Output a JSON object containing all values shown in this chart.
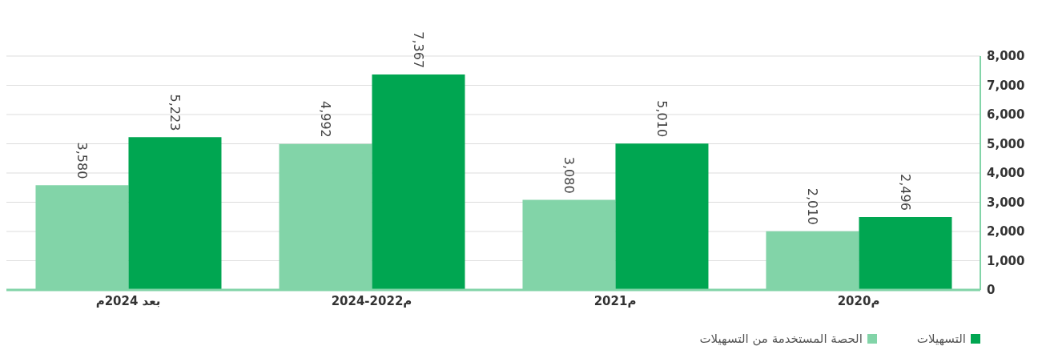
{
  "chart_data": {
    "type": "bar",
    "categories": [
      "بعد 2024م",
      "2024-2022م",
      "2021م",
      "2020م"
    ],
    "series": [
      {
        "name": "الحصة المستخدمة من التسهيلات",
        "color": "#82d4a8",
        "values": [
          3580,
          4992,
          3080,
          2010
        ],
        "value_labels": [
          "3,580",
          "4,992",
          "3,080",
          "2,010"
        ]
      },
      {
        "name": "التسهيلات",
        "color": "#00a651",
        "values": [
          5223,
          7367,
          5010,
          2496
        ],
        "value_labels": [
          "5,223",
          "7,367",
          "5,010",
          "2,496"
        ]
      }
    ],
    "ylim": [
      0,
      8000
    ],
    "yticks": [
      0,
      {
        "value": 1000,
        "label": "1,000"
      },
      {
        "value": 2000,
        "label": "2,000"
      },
      {
        "value": 3000,
        "label": "3,000"
      },
      {
        "value": 4000,
        "label": "4,000"
      },
      {
        "value": 5000,
        "label": "5,000"
      },
      {
        "value": 6000,
        "label": "6,000"
      },
      {
        "value": 7000,
        "label": "7,000"
      },
      {
        "value": 8000,
        "label": "8,000"
      }
    ],
    "grid": "y",
    "legend": "bottom right"
  }
}
